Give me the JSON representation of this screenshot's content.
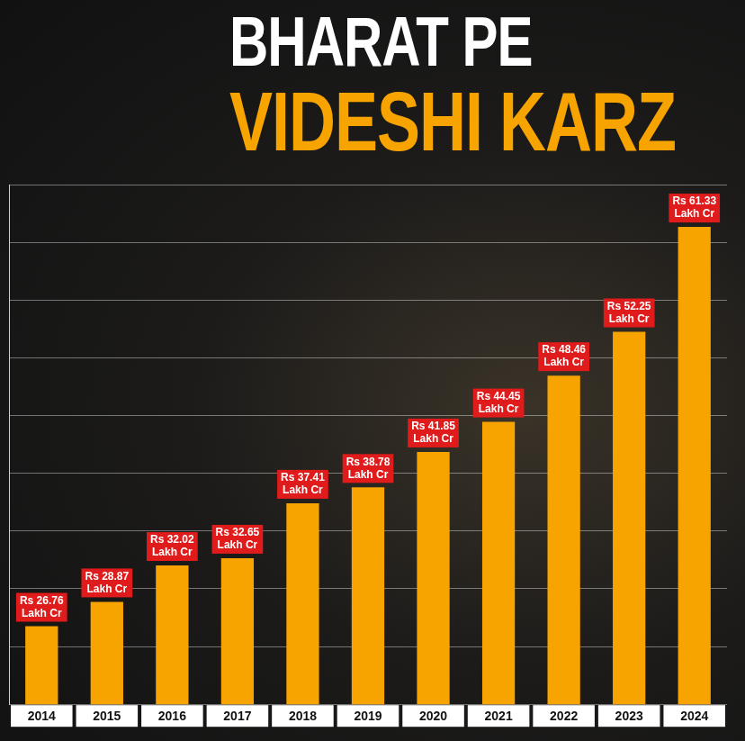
{
  "chart_data": {
    "type": "bar",
    "title": "BHARAT PE VIDESHI KARZ",
    "categories": [
      "2014",
      "2015",
      "2016",
      "2017",
      "2018",
      "2019",
      "2020",
      "2021",
      "2022",
      "2023",
      "2024"
    ],
    "values": [
      26.76,
      28.87,
      32.02,
      32.65,
      37.41,
      38.78,
      41.85,
      44.45,
      48.46,
      52.25,
      61.33
    ],
    "value_labels": [
      "Rs 26.76 Lakh Cr",
      "Rs 28.87 Lakh Cr",
      "Rs 32.02 Lakh Cr",
      "Rs 32.65 Lakh Cr",
      "Rs 37.41 Lakh Cr",
      "Rs 38.78 Lakh Cr",
      "Rs 41.85 Lakh Cr",
      "Rs 44.45 Lakh Cr",
      "Rs 48.46 Lakh Cr",
      "Rs 52.25 Lakh Cr",
      "Rs 61.33 Lakh Cr"
    ],
    "color": "#f7a400",
    "ylim": [
      20,
      65
    ],
    "yticks": [
      20,
      25,
      30,
      35,
      40,
      45,
      50,
      55,
      60,
      65
    ],
    "grid": true,
    "data_labels": true,
    "tick_labels": "x"
  }
}
